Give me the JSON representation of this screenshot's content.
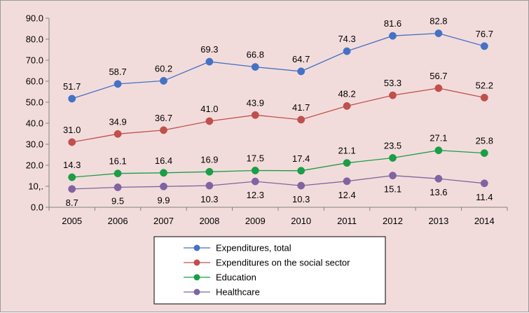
{
  "chart_data": {
    "type": "line",
    "categories": [
      "2005",
      "2006",
      "2007",
      "2008",
      "2009",
      "2010",
      "2011",
      "2012",
      "2013",
      "2014"
    ],
    "ylim": [
      0,
      90
    ],
    "yticks": [
      "0.0",
      "10,.",
      "20.0",
      "30.0",
      "40.0",
      "50.0",
      "60.0",
      "70.0",
      "80.0",
      "90.0"
    ],
    "grid": false,
    "legend_position": "bottom",
    "series": [
      {
        "name": "Expenditures, total",
        "color": "#4472c4",
        "values": [
          51.7,
          58.7,
          60.2,
          69.3,
          66.8,
          64.7,
          74.3,
          81.6,
          82.8,
          76.7
        ],
        "labels": [
          "51.7",
          "58.7",
          "60.2",
          "69.3",
          "66.8",
          "64.7",
          "74.3",
          "81.6",
          "82.8",
          "76.7"
        ],
        "label_position": "above"
      },
      {
        "name": "Expenditures on the social sector",
        "color": "#c0504d",
        "values": [
          31.0,
          34.9,
          36.7,
          41.0,
          43.9,
          41.7,
          48.2,
          53.3,
          56.7,
          52.2
        ],
        "labels": [
          "31.0",
          "34.9",
          "36.7",
          "41.0",
          "43.9",
          "41.7",
          "48.2",
          "53.3",
          "56.7",
          "52.2"
        ],
        "label_position": "above"
      },
      {
        "name": "Education",
        "color": "#1a9e47",
        "values": [
          14.3,
          16.1,
          16.4,
          16.9,
          17.5,
          17.4,
          21.1,
          23.5,
          27.1,
          25.8
        ],
        "labels": [
          "14.3",
          "16.1",
          "16.4",
          "16.9",
          "17.5",
          "17.4",
          "21.1",
          "23.5",
          "27.1",
          "25.8"
        ],
        "label_position": "above"
      },
      {
        "name": "Healthcare",
        "color": "#8064a2",
        "values": [
          8.7,
          9.5,
          9.9,
          10.3,
          12.3,
          10.3,
          12.4,
          15.1,
          13.6,
          11.4
        ],
        "labels": [
          "8.7",
          "9.5",
          "9.9",
          "10.3",
          "12.3",
          "10.3",
          "12.4",
          "15.1",
          "13.6",
          "11.4"
        ],
        "label_position": "below"
      }
    ]
  }
}
